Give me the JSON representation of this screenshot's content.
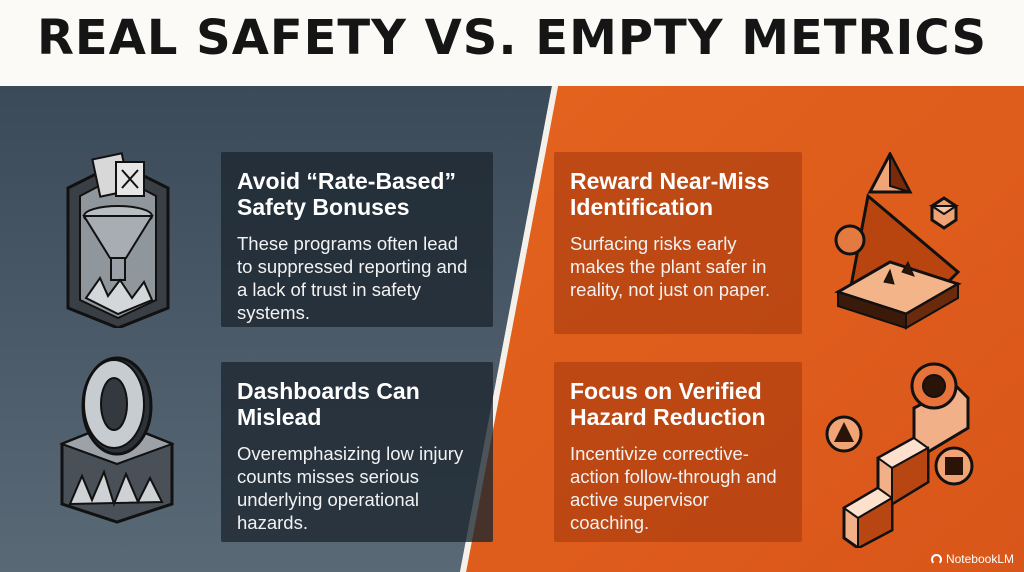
{
  "title": "REAL SAFETY VS. EMPTY METRICS",
  "left": {
    "cards": [
      {
        "heading": "Avoid “Rate-Based” Safety Bonuses",
        "body": "These programs often lead to suppressed reporting and a lack of trust in safety systems.",
        "icon": "funnel-filter-icon"
      },
      {
        "heading": "Dashboards Can Mislead",
        "body": "Overemphasizing low injury counts misses serious underlying operational hazards.",
        "icon": "zero-pedestal-icon"
      }
    ]
  },
  "right": {
    "cards": [
      {
        "heading": "Reward Near-Miss Identification",
        "body": "Surfacing risks early makes the plant safer in reality, not just on paper.",
        "icon": "hazard-pyramid-icon"
      },
      {
        "heading": "Focus on Verified Hazard Reduction",
        "body": "Incentivize corrective-action follow-through and active supervisor coaching.",
        "icon": "ascending-steps-icon"
      }
    ]
  },
  "brand": "NotebookLM",
  "colors": {
    "left_panel": "#445566",
    "right_panel": "#e2601f",
    "title_text": "#151515"
  }
}
